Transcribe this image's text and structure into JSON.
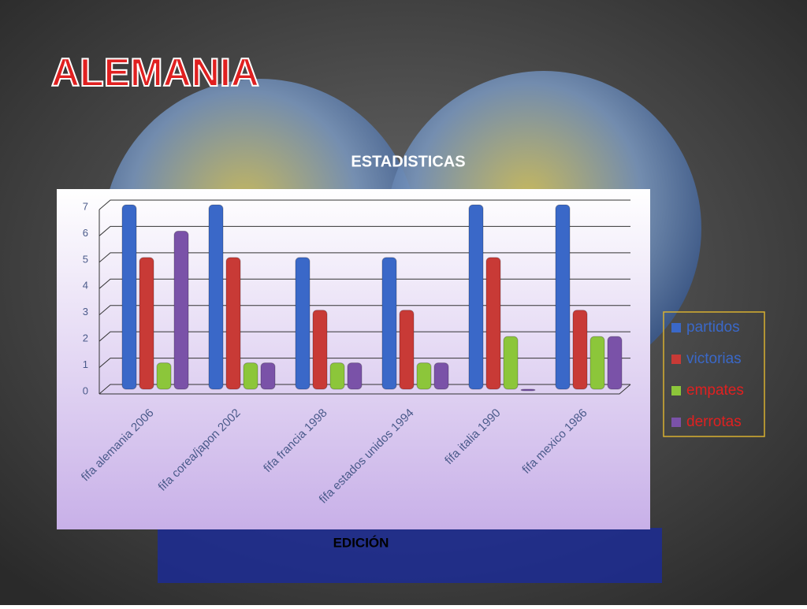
{
  "chart_data": {
    "type": "bar",
    "title": "ALEMANIA",
    "subtitle": "ESTADISTICAS",
    "x_label": "EDICIÓN",
    "categories": [
      "fifa alemania 2006",
      "fifa corea/japon 2002",
      "fifa francia 1998",
      "fifa estados unidos 1994",
      "fifa italia 1990",
      "fifa mexico 1986"
    ],
    "series": [
      {
        "name": "partidos",
        "color": "#3a68c8",
        "values": [
          7,
          7,
          5,
          5,
          7,
          7
        ]
      },
      {
        "name": "victorias",
        "color": "#c83a36",
        "values": [
          5,
          5,
          3,
          3,
          5,
          3
        ]
      },
      {
        "name": "empates",
        "color": "#8cc63a",
        "values": [
          1,
          1,
          1,
          1,
          2,
          2
        ]
      },
      {
        "name": "derrotas",
        "color": "#7a52a8",
        "values": [
          6,
          1,
          1,
          1,
          0,
          2
        ]
      }
    ],
    "ylim": [
      0,
      7
    ],
    "yticks": [
      0,
      1,
      2,
      3,
      4,
      5,
      6,
      7
    ],
    "grid": true,
    "legend": "right"
  }
}
